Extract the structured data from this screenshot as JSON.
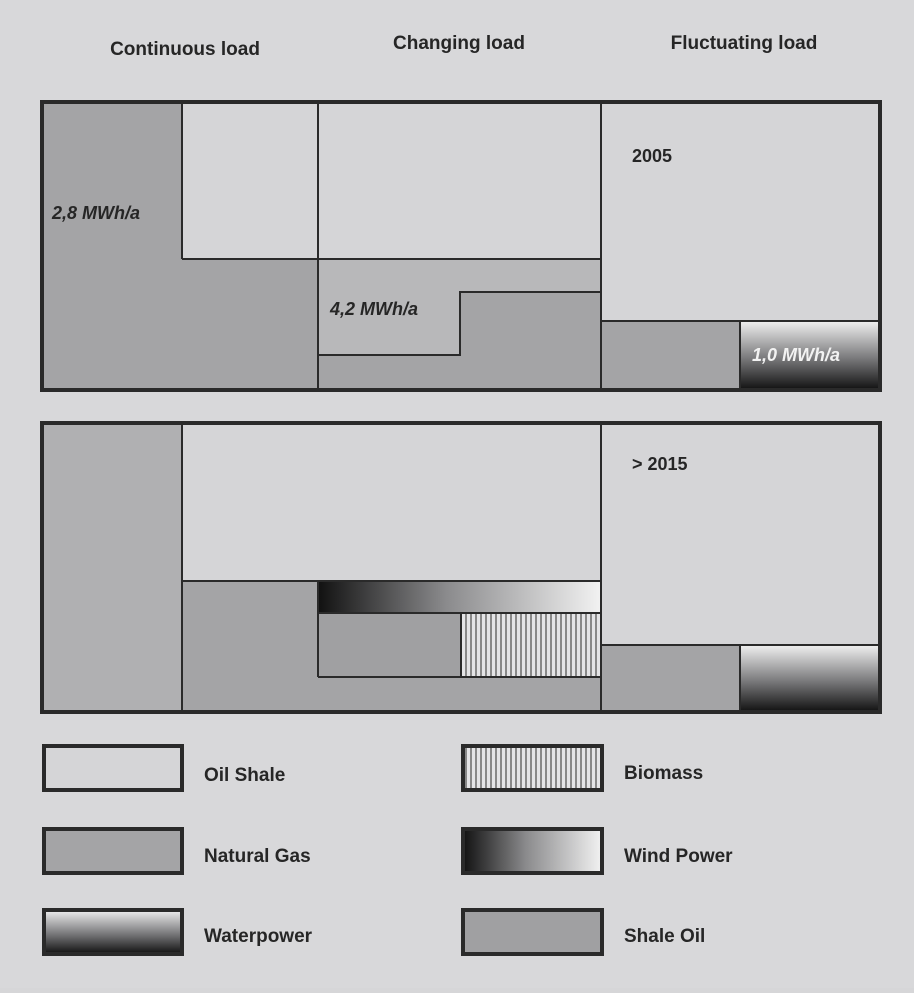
{
  "columns": {
    "continuous": "Continuous load",
    "changing": "Changing load",
    "fluctuating": "Fluctuating load"
  },
  "panel_2005": {
    "year": "2005",
    "continuous_value": "2,8 MWh/a",
    "changing_value": "4,2 MWh/a",
    "fluctuating_value": "1,0 MWh/a"
  },
  "panel_2015": {
    "year": "> 2015"
  },
  "legend": [
    {
      "label": "Oil Shale",
      "fill": "#d5d5d7"
    },
    {
      "label": "Biomass",
      "fill": "hatch"
    },
    {
      "label": "Natural Gas",
      "fill": "#a4a4a6"
    },
    {
      "label": "Wind Power",
      "fill": "gradient-dark-left"
    },
    {
      "label": "Waterpower",
      "fill": "gradient-dark-bottom"
    },
    {
      "label": "Shale Oil",
      "fill": "#a0a0a2"
    }
  ],
  "colors": {
    "oil_shale": "#d5d5d7",
    "natural_gas": "#a4a4a6",
    "shale_oil": "#a0a0a2",
    "border": "#2a2a2a"
  }
}
